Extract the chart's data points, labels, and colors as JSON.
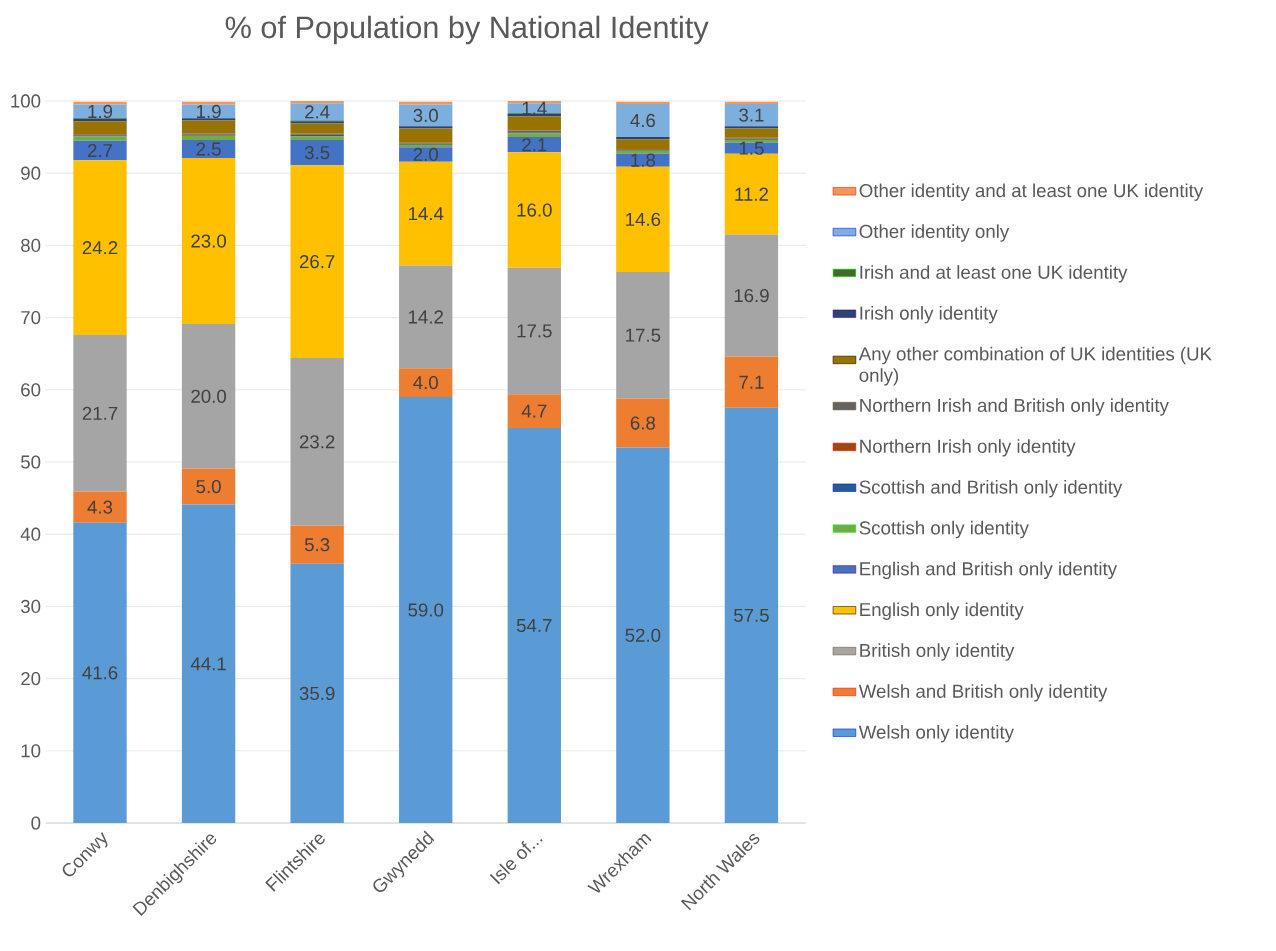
{
  "chart_data": {
    "type": "bar",
    "stacked": true,
    "title": "% of Population by National Identity",
    "categories": [
      "Conwy",
      "Denbighshire",
      "Flintshire",
      "Gwynedd",
      "Isle of...",
      "Wrexham",
      "North Wales"
    ],
    "ylim": [
      0,
      100
    ],
    "yticks": [
      0,
      10,
      20,
      30,
      40,
      50,
      60,
      70,
      80,
      90,
      100
    ],
    "grid": "y",
    "legend": "right",
    "series": [
      {
        "name": "Welsh only identity",
        "color": "#5b9bd5",
        "values": [
          41.6,
          44.1,
          35.9,
          59.0,
          54.7,
          52.0,
          57.5
        ],
        "value_labels": [
          "41.6",
          "44.1",
          "35.9",
          "59.0",
          "54.7",
          "52.0",
          "57.5"
        ]
      },
      {
        "name": "Welsh and British only identity",
        "color": "#ed7d31",
        "values": [
          4.3,
          5.0,
          5.3,
          4.0,
          4.7,
          6.8,
          7.1
        ],
        "value_labels": [
          "4.3",
          "5.0",
          "5.3",
          "4.0",
          "4.7",
          "6.8",
          "7.1"
        ]
      },
      {
        "name": "British only identity",
        "color": "#a5a5a5",
        "values": [
          21.7,
          20.0,
          23.2,
          14.2,
          17.5,
          17.5,
          16.9
        ],
        "value_labels": [
          "21.7",
          "20.0",
          "23.2",
          "14.2",
          "17.5",
          "17.5",
          "16.9"
        ]
      },
      {
        "name": "English only identity",
        "color": "#ffc000",
        "values": [
          24.2,
          23.0,
          26.7,
          14.4,
          16.0,
          14.6,
          11.2
        ],
        "value_labels": [
          "24.2",
          "23.0",
          "26.7",
          "14.4",
          "16.0",
          "14.6",
          "11.2"
        ]
      },
      {
        "name": "English and British only identity",
        "color": "#4472c4",
        "values": [
          2.7,
          2.5,
          3.5,
          2.0,
          2.1,
          1.8,
          1.5
        ],
        "value_labels": [
          "2.7",
          "2.5",
          "3.5",
          "2.0",
          "2.1",
          "1.8",
          "1.5"
        ]
      },
      {
        "name": "Scottish only identity",
        "color": "#70ad47",
        "values": [
          0.6,
          0.6,
          0.5,
          0.3,
          0.5,
          0.4,
          0.4
        ]
      },
      {
        "name": "Scottish and British only identity",
        "color": "#255e91",
        "values": [
          0.1,
          0.1,
          0.2,
          0.1,
          0.1,
          0.1,
          0.1
        ]
      },
      {
        "name": "Northern Irish only identity",
        "color": "#9e480e",
        "values": [
          0.1,
          0.1,
          0.1,
          0.1,
          0.1,
          0.1,
          0.1
        ]
      },
      {
        "name": "Northern Irish and British only identity",
        "color": "#636363",
        "values": [
          0.1,
          0.1,
          0.1,
          0.1,
          0.2,
          null,
          0.1
        ]
      },
      {
        "name": "Any other combination of UK identities (UK only)",
        "color": "#997300",
        "values": [
          1.8,
          1.8,
          1.4,
          2.0,
          2.0,
          1.4,
          1.3
        ]
      },
      {
        "name": "Irish only identity",
        "color": "#264478",
        "values": [
          0.3,
          0.3,
          0.3,
          0.3,
          0.3,
          0.3,
          0.3
        ]
      },
      {
        "name": "Irish and at least one UK identity",
        "color": "#43682b",
        "values": [
          0.1,
          null,
          0.1,
          null,
          0.1,
          0.0,
          null
        ]
      },
      {
        "name": "Other identity only",
        "color": "#7cafdd",
        "values": [
          1.9,
          1.9,
          2.4,
          3.0,
          1.4,
          4.6,
          3.1
        ],
        "value_labels": [
          "1.9",
          "1.9",
          "2.4",
          "3.0",
          "1.4",
          "4.6",
          "3.1"
        ]
      },
      {
        "name": "Other identity and at least one UK identity",
        "color": "#f1975a",
        "values": [
          0.4,
          0.4,
          0.3,
          0.4,
          0.3,
          0.3,
          0.3
        ]
      }
    ]
  }
}
